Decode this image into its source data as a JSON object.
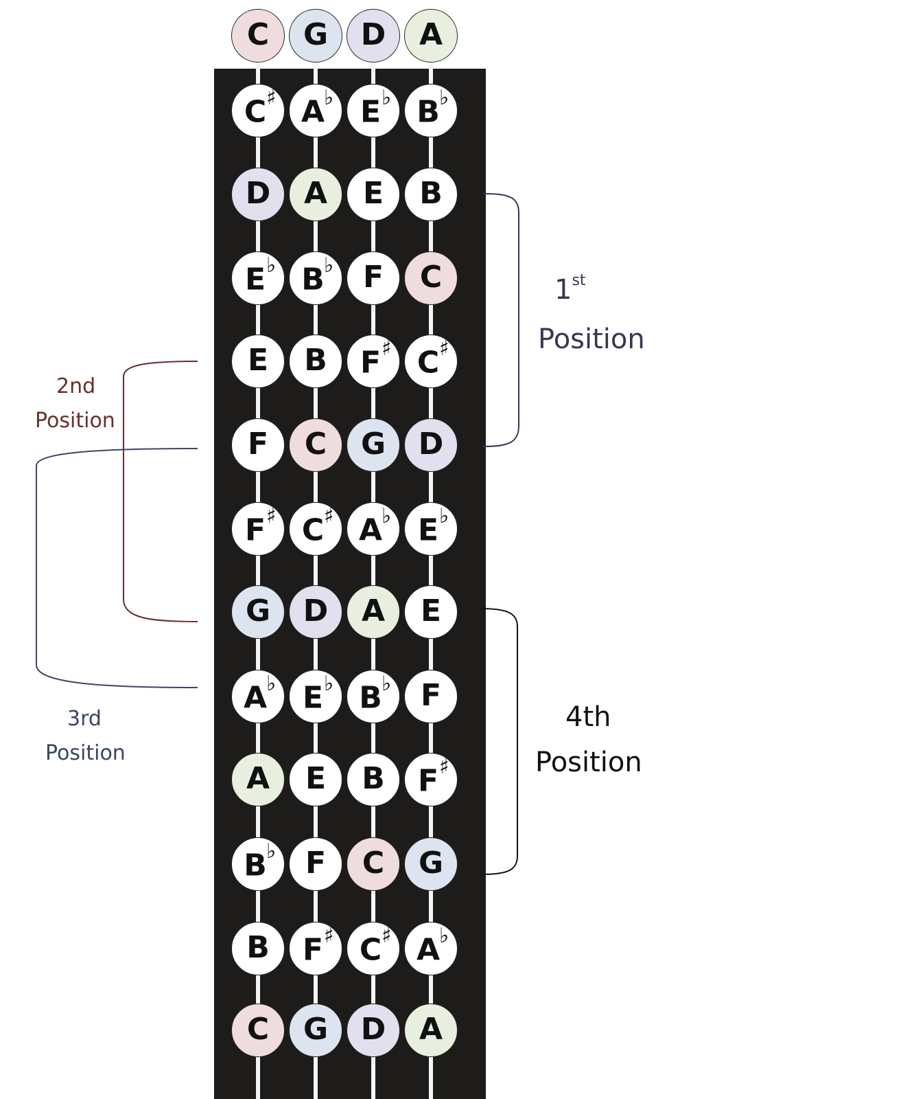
{
  "strings": [
    "C",
    "G",
    "D",
    "A"
  ],
  "rows": [
    [
      {
        "n": "C"
      },
      {
        "n": "G"
      },
      {
        "n": "D"
      },
      {
        "n": "A"
      }
    ],
    [
      {
        "n": "C",
        "a": "♯"
      },
      {
        "n": "A",
        "a": "♭"
      },
      {
        "n": "E",
        "a": "♭"
      },
      {
        "n": "B",
        "a": "♭"
      }
    ],
    [
      {
        "n": "D"
      },
      {
        "n": "A"
      },
      {
        "n": "E"
      },
      {
        "n": "B"
      }
    ],
    [
      {
        "n": "E",
        "a": "♭"
      },
      {
        "n": "B",
        "a": "♭"
      },
      {
        "n": "F"
      },
      {
        "n": "C"
      }
    ],
    [
      {
        "n": "E"
      },
      {
        "n": "B"
      },
      {
        "n": "F",
        "a": "♯"
      },
      {
        "n": "C",
        "a": "♯"
      }
    ],
    [
      {
        "n": "F"
      },
      {
        "n": "C"
      },
      {
        "n": "G"
      },
      {
        "n": "D"
      }
    ],
    [
      {
        "n": "F",
        "a": "♯"
      },
      {
        "n": "C",
        "a": "♯"
      },
      {
        "n": "A",
        "a": "♭"
      },
      {
        "n": "E",
        "a": "♭"
      }
    ],
    [
      {
        "n": "G"
      },
      {
        "n": "D"
      },
      {
        "n": "A"
      },
      {
        "n": "E"
      }
    ],
    [
      {
        "n": "A",
        "a": "♭"
      },
      {
        "n": "E",
        "a": "♭"
      },
      {
        "n": "B",
        "a": "♭"
      },
      {
        "n": "F"
      }
    ],
    [
      {
        "n": "A"
      },
      {
        "n": "E"
      },
      {
        "n": "B"
      },
      {
        "n": "F",
        "a": "♯"
      }
    ],
    [
      {
        "n": "B",
        "a": "♭"
      },
      {
        "n": "F"
      },
      {
        "n": "C"
      },
      {
        "n": "G"
      }
    ],
    [
      {
        "n": "B"
      },
      {
        "n": "F",
        "a": "♯"
      },
      {
        "n": "C",
        "a": "♯"
      },
      {
        "n": "A",
        "a": "♭"
      }
    ],
    [
      {
        "n": "C"
      },
      {
        "n": "G"
      },
      {
        "n": "D"
      },
      {
        "n": "A"
      }
    ]
  ],
  "positions": [
    {
      "id": "first",
      "number": "1",
      "suffix": "st",
      "word": "Position",
      "color": "#3b3550",
      "from_row": 2,
      "to_row": 5
    },
    {
      "id": "second",
      "line1": "2nd",
      "line2": "Position",
      "color": "#6b2d2d",
      "from_row": 4,
      "to_row": 7
    },
    {
      "id": "third",
      "line1": "3rd",
      "line2": "Position",
      "color": "#3a4560",
      "from_row": 5,
      "to_row": 8
    },
    {
      "id": "fourth",
      "line1": "4th",
      "line2": "Position",
      "color": "#111111",
      "from_row": 7,
      "to_row": 10
    }
  ],
  "colors": {
    "C": "#efdcdc",
    "G": "#dce4ef",
    "D": "#e2dfee",
    "A": "#e8efdf",
    "fingerboard": "#1d1c1a"
  }
}
